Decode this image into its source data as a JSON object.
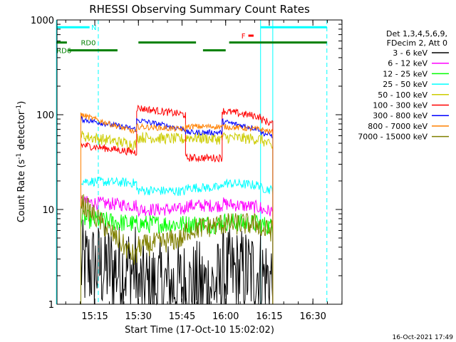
{
  "chart_data": {
    "type": "line",
    "title": "RHESSI Observing Summary Count Rates",
    "xlabel": "Start Time (17-Oct-10 15:02:02)",
    "ylabel": "Count Rate (s",
    "ylabel_sup": "-1",
    "ylabel_rest": " detector",
    "ylabel_close": ")",
    "y_scale": "log",
    "xlim": [
      15.0333,
      16.6667
    ],
    "ylim": [
      1,
      1000
    ],
    "x_ticks": [
      {
        "value": 15.25,
        "label": "15:15"
      },
      {
        "value": 15.5,
        "label": "15:30"
      },
      {
        "value": 15.75,
        "label": "15:45"
      },
      {
        "value": 16.0,
        "label": "16:00"
      },
      {
        "value": 16.25,
        "label": "16:15"
      },
      {
        "value": 16.5,
        "label": "16:30"
      }
    ],
    "y_ticks": [
      {
        "value": 1,
        "label": "1"
      },
      {
        "value": 10,
        "label": "10"
      },
      {
        "value": 100,
        "label": "100"
      },
      {
        "value": 1000,
        "label": "1000"
      }
    ],
    "legend": {
      "placement": "right",
      "header": [
        "Det 1,3,4,5,6,9,",
        "FDecim 2, Att 0"
      ],
      "entries": [
        {
          "label": "3 - 6 keV",
          "color": "#000000"
        },
        {
          "label": "6 - 12 keV",
          "color": "#ff00ff"
        },
        {
          "label": "12 - 25 keV",
          "color": "#00ff00"
        },
        {
          "label": "25 - 50 keV",
          "color": "#00ffff"
        },
        {
          "label": "50 - 100 keV",
          "color": "#cccc00"
        },
        {
          "label": "100 - 300 keV",
          "color": "#ff0000"
        },
        {
          "label": "300 - 800 keV",
          "color": "#0000ff"
        },
        {
          "label": "800 - 7000 keV",
          "color": "#ff8000"
        },
        {
          "label": "7000 - 15000 keV",
          "color": "#808000"
        }
      ]
    },
    "segments": [
      [
        15.17,
        15.49
      ],
      [
        15.49,
        15.77
      ],
      [
        15.77,
        15.98
      ],
      [
        15.98,
        16.2
      ],
      [
        16.2,
        16.27
      ]
    ],
    "series": [
      {
        "name": "3 - 6 keV",
        "color": "#000000",
        "noise": 0.5,
        "levels": [
          [
            2.5,
            2.3
          ],
          [
            1.5,
            1.6
          ],
          [
            1.5,
            1.6
          ],
          [
            2.0,
            2.2
          ],
          [
            2.0,
            1.8
          ]
        ]
      },
      {
        "name": "6 - 12 keV",
        "color": "#ff00ff",
        "noise": 0.07,
        "levels": [
          [
            12,
            11
          ],
          [
            10,
            10
          ],
          [
            11,
            11
          ],
          [
            11.5,
            10.5
          ],
          [
            10,
            9.5
          ]
        ]
      },
      {
        "name": "12 - 25 keV",
        "color": "#00ff00",
        "noise": 0.1,
        "levels": [
          [
            8,
            7
          ],
          [
            7,
            7
          ],
          [
            7,
            7
          ],
          [
            7.5,
            7
          ],
          [
            7,
            6.5
          ]
        ]
      },
      {
        "name": "25 - 50 keV",
        "color": "#00ffff",
        "noise": 0.05,
        "levels": [
          [
            20,
            19
          ],
          [
            16,
            15.5
          ],
          [
            17,
            17
          ],
          [
            19,
            18
          ],
          [
            17,
            16
          ]
        ]
      },
      {
        "name": "50 - 100 keV",
        "color": "#cccc00",
        "noise": 0.06,
        "levels": [
          [
            60,
            48
          ],
          [
            58,
            55
          ],
          [
            58,
            55
          ],
          [
            58,
            55
          ],
          [
            55,
            45
          ]
        ]
      },
      {
        "name": "100 - 300 keV",
        "color": "#ff0000",
        "noise": 0.04,
        "levels": [
          [
            48,
            40
          ],
          [
            118,
            100
          ],
          [
            35,
            35
          ],
          [
            110,
            95
          ],
          [
            90,
            80
          ]
        ]
      },
      {
        "name": "300 - 800 keV",
        "color": "#0000ff",
        "noise": 0.03,
        "levels": [
          [
            90,
            70
          ],
          [
            88,
            70
          ],
          [
            65,
            65
          ],
          [
            85,
            70
          ],
          [
            65,
            60
          ]
        ]
      },
      {
        "name": "800 - 7000 keV",
        "color": "#ff8000",
        "noise": 0.03,
        "levels": [
          [
            100,
            65
          ],
          [
            75,
            70
          ],
          [
            75,
            75
          ],
          [
            75,
            70
          ],
          [
            70,
            65
          ]
        ]
      },
      {
        "name": "7000 - 15000 keV",
        "color": "#808000",
        "noise": 0.12,
        "levels": [
          [
            12,
            3
          ],
          [
            4,
            5
          ],
          [
            6,
            7
          ],
          [
            7,
            7
          ],
          [
            6,
            6
          ]
        ]
      }
    ],
    "bars": [
      {
        "label": "N",
        "color": "#00ffff",
        "y": 838,
        "x": [
          15.03,
          15.22
        ],
        "label_x": 15.23
      },
      {
        "label": "",
        "color": "#00ffff",
        "y": 838,
        "x": [
          16.2,
          16.58
        ]
      },
      {
        "label": "F",
        "color": "#ff0000",
        "y": 683,
        "x": [
          16.13,
          16.16
        ],
        "label_x": 16.09
      },
      {
        "label": "RD0",
        "color": "#008000",
        "y": 578,
        "x": [
          15.5,
          15.83
        ],
        "label_x": 15.17
      },
      {
        "label": "",
        "color": "#008000",
        "y": 578,
        "x": [
          15.03,
          15.09
        ]
      },
      {
        "label": "",
        "color": "#008000",
        "y": 578,
        "x": [
          16.02,
          16.58
        ]
      },
      {
        "label": "RD6",
        "color": "#008000",
        "y": 478,
        "x": [
          15.1,
          15.38
        ],
        "label_x": 15.03
      },
      {
        "label": "",
        "color": "#008000",
        "y": 478,
        "x": [
          15.87,
          16.0
        ]
      }
    ],
    "vlines": [
      {
        "x": 15.03,
        "color": "#00ffff",
        "style": "solid"
      },
      {
        "x": 15.27,
        "color": "#00ffff",
        "style": "dashed"
      },
      {
        "x": 16.2,
        "color": "#00ffff",
        "style": "solid"
      },
      {
        "x": 16.27,
        "color": "#00ffff",
        "style": "solid"
      },
      {
        "x": 16.58,
        "color": "#00ffff",
        "style": "dashed"
      }
    ],
    "footer": "16-Oct-2021 17:49"
  }
}
